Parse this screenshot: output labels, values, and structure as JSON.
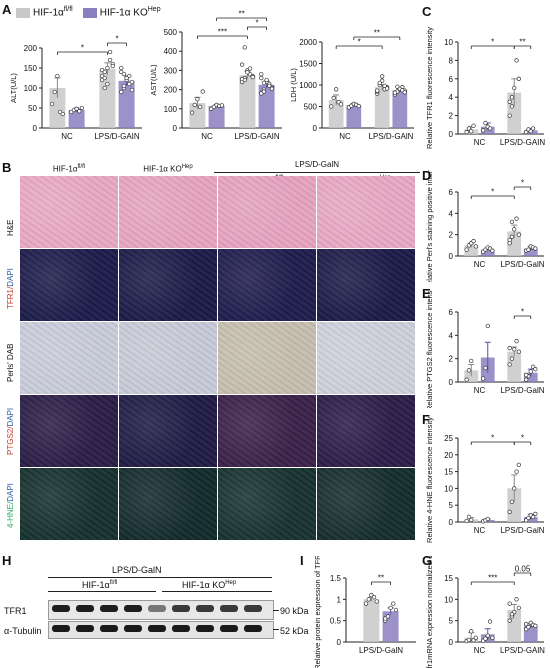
{
  "panels": {
    "A": "A",
    "B": "B",
    "C": "C",
    "D": "D",
    "E": "E",
    "F": "F",
    "G": "G",
    "H": "H",
    "I": "I"
  },
  "legend": {
    "wt": "HIF-1α",
    "wt_sup": "fl/fl",
    "ko": "HIF-1α KO",
    "ko_sup": "Hep"
  },
  "colors": {
    "wt": "#c8c8c8",
    "ko": "#8b7fc0"
  },
  "groups": {
    "nc": "NC",
    "lps": "LPS/D-GAlN",
    "lps2": "LPS/D-GalN"
  },
  "sig": {
    "one": "*",
    "two": "**",
    "three": "***",
    "p05": "0.05"
  },
  "chart_data": [
    {
      "type": "bar",
      "id": "alt",
      "ylabel": "ALT(U/L)",
      "ylim": [
        0,
        200
      ],
      "ticks": [
        0,
        50,
        100,
        150,
        200
      ],
      "categories": [
        "NC",
        "LPS/D-GAIN"
      ],
      "series": [
        {
          "values": [
            100,
            148
          ],
          "err": [
            25,
            15
          ]
        },
        {
          "values": [
            45,
            118
          ],
          "err": [
            5,
            12
          ]
        }
      ],
      "points": [
        [
          [
            60,
            90,
            130,
            40,
            35
          ],
          [
            120,
            100,
            150,
            190,
            160,
            130,
            140,
            110,
            170,
            155,
            145,
            125
          ]
        ],
        [
          [
            40,
            45,
            48,
            42,
            50
          ],
          [
            90,
            100,
            120,
            130,
            115,
            140,
            105,
            125,
            110,
            95,
            150,
            135
          ]
        ]
      ],
      "sigs": [
        {
          "from": [
            0,
            0
          ],
          "to": [
            1,
            0
          ],
          "level": 0,
          "text": "*"
        },
        {
          "from": [
            1,
            0
          ],
          "to": [
            1,
            1
          ],
          "level": 1,
          "text": "*"
        }
      ]
    },
    {
      "type": "bar",
      "id": "ast",
      "ylabel": "AST(U/L)",
      "ylim": [
        0,
        500
      ],
      "ticks": [
        0,
        100,
        200,
        300,
        400,
        500
      ],
      "categories": [
        "NC",
        "LPS/D-GAIN"
      ],
      "series": [
        {
          "values": [
            130,
            275
          ],
          "err": [
            30,
            20
          ]
        },
        {
          "values": [
            115,
            225
          ],
          "err": [
            8,
            18
          ]
        }
      ],
      "points": [
        [
          [
            80,
            120,
            150,
            110,
            190
          ],
          [
            240,
            260,
            300,
            280,
            270,
            330,
            250,
            290,
            310,
            265,
            255,
            420
          ]
        ],
        [
          [
            100,
            110,
            120,
            115,
            118
          ],
          [
            180,
            200,
            240,
            230,
            210,
            260,
            190,
            250,
            220,
            205,
            280,
            235
          ]
        ]
      ],
      "sigs": [
        {
          "from": [
            0,
            0
          ],
          "to": [
            1,
            0
          ],
          "level": 0,
          "text": "***"
        },
        {
          "from": [
            1,
            0
          ],
          "to": [
            1,
            1
          ],
          "level": 1,
          "text": "*"
        },
        {
          "from": [
            0,
            1
          ],
          "to": [
            1,
            1
          ],
          "level": 2,
          "text": "**"
        }
      ]
    },
    {
      "type": "bar",
      "id": "ldh",
      "ylabel": "LDH (U/L)",
      "ylim": [
        0,
        2000
      ],
      "ticks": [
        0,
        500,
        1000,
        1500,
        2000
      ],
      "categories": [
        "NC",
        "LPS/D-GAlN"
      ],
      "series": [
        {
          "values": [
            650,
            950
          ],
          "err": [
            120,
            60
          ]
        },
        {
          "values": [
            530,
            880
          ],
          "err": [
            40,
            40
          ]
        }
      ],
      "points": [
        [
          [
            500,
            700,
            900,
            600,
            550
          ],
          [
            800,
            1000,
            1100,
            900,
            950,
            850,
            1050,
            1200,
            980,
            920,
            870
          ]
        ],
        [
          [
            480,
            520,
            560,
            540,
            510
          ],
          [
            780,
            850,
            900,
            950,
            870,
            820,
            960,
            910,
            880,
            830
          ]
        ]
      ],
      "sigs": [
        {
          "from": [
            0,
            0
          ],
          "to": [
            1,
            0
          ],
          "level": 0,
          "text": "*"
        },
        {
          "from": [
            0,
            1
          ],
          "to": [
            1,
            1
          ],
          "level": 1,
          "text": "**"
        }
      ]
    },
    {
      "type": "bar",
      "id": "tfr1",
      "ylabel": "Relative TFR1 fluorescence intensity",
      "ylim": [
        0,
        10
      ],
      "ticks": [
        0,
        2,
        4,
        6,
        8,
        10
      ],
      "categories": [
        "NC",
        "LPS/D-GAIN"
      ],
      "series": [
        {
          "values": [
            0.5,
            4.5
          ],
          "err": [
            0.3,
            1.5
          ]
        },
        {
          "values": [
            0.8,
            0.4
          ],
          "err": [
            0.4,
            0.2
          ]
        }
      ],
      "points": [
        [
          [
            0.2,
            0.6,
            0.3,
            0.9
          ],
          [
            2.0,
            3.0,
            5.0,
            8.0,
            6.0,
            3.5,
            4.0
          ]
        ],
        [
          [
            0.4,
            1.2,
            0.8,
            0.6
          ],
          [
            0.2,
            0.5,
            0.3,
            0.6
          ]
        ]
      ],
      "sigs": [
        {
          "from": [
            0,
            0
          ],
          "to": [
            1,
            0
          ],
          "level": 0,
          "text": "*"
        },
        {
          "from": [
            1,
            0
          ],
          "to": [
            1,
            1
          ],
          "level": 0,
          "text": "**"
        }
      ]
    },
    {
      "type": "bar",
      "id": "perls",
      "ylabel": "Relative Perl's staining positive intensity",
      "ylim": [
        0,
        6
      ],
      "ticks": [
        0,
        2,
        4,
        6
      ],
      "categories": [
        "NC",
        "LPS/D-GalN"
      ],
      "series": [
        {
          "values": [
            1.0,
            2.3
          ],
          "err": [
            0.2,
            0.6
          ]
        },
        {
          "values": [
            0.6,
            0.7
          ],
          "err": [
            0.1,
            0.2
          ]
        }
      ],
      "points": [
        [
          [
            0.6,
            1.0,
            1.2,
            1.4,
            0.9
          ],
          [
            1.2,
            1.8,
            2.5,
            3.5,
            2.0,
            1.5,
            3.2
          ]
        ],
        [
          [
            0.4,
            0.6,
            0.8,
            0.7,
            0.5
          ],
          [
            0.5,
            0.6,
            0.9,
            0.8,
            0.7
          ]
        ]
      ],
      "sigs": [
        {
          "from": [
            0,
            0
          ],
          "to": [
            1,
            0
          ],
          "level": 0,
          "text": "*"
        },
        {
          "from": [
            1,
            0
          ],
          "to": [
            1,
            1
          ],
          "level": 1,
          "text": "*"
        }
      ]
    },
    {
      "type": "bar",
      "id": "ptgs2",
      "ylabel": "Relative PTGS2 fluorescence intensity",
      "ylim": [
        0,
        6
      ],
      "ticks": [
        0,
        2,
        4,
        6
      ],
      "categories": [
        "NC",
        "LPS/D-GalN"
      ],
      "series": [
        {
          "values": [
            1.0,
            2.6
          ],
          "err": [
            0.5,
            0.4
          ]
        },
        {
          "values": [
            2.1,
            0.8
          ],
          "err": [
            1.3,
            0.3
          ]
        }
      ],
      "points": [
        [
          [
            0.2,
            1.0,
            1.8
          ],
          [
            1.5,
            2.0,
            2.8,
            3.5,
            2.6,
            2.9
          ]
        ],
        [
          [
            0.3,
            1.2,
            4.8
          ],
          [
            0.2,
            0.5,
            0.9,
            1.3,
            1.1,
            0.6
          ]
        ]
      ],
      "sigs": [
        {
          "from": [
            1,
            0
          ],
          "to": [
            1,
            1
          ],
          "level": 0,
          "text": "*"
        }
      ]
    },
    {
      "type": "bar",
      "id": "hne",
      "ylabel": "Relative 4-HNE fluorescence intensity",
      "ylim": [
        0,
        25
      ],
      "ticks": [
        0,
        5,
        10,
        15,
        20,
        25
      ],
      "categories": [
        "NC",
        "LPS/D-GalN"
      ],
      "series": [
        {
          "values": [
            0.8,
            10
          ],
          "err": [
            0.5,
            4
          ]
        },
        {
          "values": [
            0.6,
            1.5
          ],
          "err": [
            0.3,
            0.8
          ]
        }
      ],
      "points": [
        [
          [
            0.3,
            1.5,
            0.6
          ],
          [
            3,
            6,
            10,
            15,
            17
          ]
        ],
        [
          [
            0.2,
            0.5,
            0.9
          ],
          [
            0.5,
            1.2,
            2.0,
            1.5,
            2.4
          ]
        ]
      ],
      "sigs": [
        {
          "from": [
            0,
            0
          ],
          "to": [
            1,
            0
          ],
          "level": 0,
          "text": "*"
        },
        {
          "from": [
            1,
            0
          ],
          "to": [
            1,
            1
          ],
          "level": 0,
          "text": "*"
        }
      ]
    },
    {
      "type": "bar",
      "id": "tfrmrna",
      "ylabel": "Tfr1mRNA expression normalized 18s",
      "ylim": [
        0,
        15
      ],
      "ticks": [
        0,
        5,
        10,
        15
      ],
      "categories": [
        "NC",
        "LPS/D-GAlN"
      ],
      "series": [
        {
          "values": [
            1.0,
            7.5
          ],
          "err": [
            1.2,
            1.3
          ]
        },
        {
          "values": [
            1.8,
            3.8
          ],
          "err": [
            1.3,
            0.5
          ]
        }
      ],
      "points": [
        [
          [
            0.2,
            0.5,
            2.5,
            0.4,
            1.0
          ],
          [
            5,
            6,
            7,
            10,
            8,
            9,
            6.5
          ]
        ],
        [
          [
            0.3,
            0.8,
            1.5,
            4.8,
            1.0
          ],
          [
            3,
            3.5,
            4.5,
            4.0,
            3.8,
            4.2
          ]
        ]
      ],
      "sigs": [
        {
          "from": [
            0,
            0
          ],
          "to": [
            1,
            0
          ],
          "level": 0,
          "text": "***"
        },
        {
          "from": [
            1,
            0
          ],
          "to": [
            1,
            1
          ],
          "level": 1,
          "text": "0.05"
        }
      ]
    },
    {
      "type": "bar",
      "id": "protein",
      "ylabel": "Relative protein expression of TFR1",
      "ylim": [
        0,
        1.5
      ],
      "ticks": [
        0.0,
        0.5,
        1.0,
        1.5
      ],
      "categories": [
        "LPS/D-GalN"
      ],
      "series": [
        {
          "values": [
            1.0
          ],
          "err": [
            0.05
          ]
        },
        {
          "values": [
            0.72
          ],
          "err": [
            0.08
          ]
        }
      ],
      "points": [
        [
          [
            0.9,
            1.0,
            1.1,
            1.05,
            0.95
          ]
        ],
        [
          [
            0.5,
            0.6,
            0.8,
            0.9,
            0.75,
            0.55
          ]
        ]
      ],
      "sigs": [
        {
          "from": [
            0,
            0
          ],
          "to": [
            0,
            1
          ],
          "level": 0,
          "text": "**"
        }
      ]
    }
  ],
  "micrograph": {
    "col_top": "LPS/D-GalN",
    "cols": [
      {
        "t": "HIF-1α",
        "s": "fl/fl"
      },
      {
        "t": "HIF-1α KO",
        "s": "Hep"
      },
      {
        "t": "HIF-1α",
        "s": "fl/fl"
      },
      {
        "t": "HIF-1α KO",
        "s": "Hep"
      }
    ],
    "rows": [
      {
        "label": "H&E",
        "colors": [
          "#e9a9c3",
          "#e7a5c0",
          "#e6a3bf",
          "#e9a8c3"
        ]
      },
      {
        "label": "TFR1/",
        "label2": "DAPI",
        "colors": [
          "#1b1b4a",
          "#1a1a48",
          "#1e1c4c",
          "#1b1a48"
        ]
      },
      {
        "label": "Perls' DAB",
        "colors": [
          "#c9ccda",
          "#c8cad8",
          "#c6bfae",
          "#cfd0dc"
        ]
      },
      {
        "label": "PTGS2/",
        "label2": "DAPI",
        "colors": [
          "#2a1c46",
          "#1f1a44",
          "#3a2048",
          "#2a1c48"
        ]
      },
      {
        "label": "4-HNE/",
        "label2": "DAPI",
        "colors": [
          "#14302e",
          "#122a2c",
          "#16322f",
          "#142c2d"
        ]
      }
    ]
  },
  "western": {
    "top": "LPS/D-GalN",
    "g1": "HIF-1α",
    "g1s": "fl/fl",
    "g2": "HIF-1α KO",
    "g2s": "Hep",
    "bands": [
      {
        "name": "TFR1",
        "size": "90 kDa"
      },
      {
        "name": "α-Tubulin",
        "size": "52 kDa"
      }
    ]
  }
}
